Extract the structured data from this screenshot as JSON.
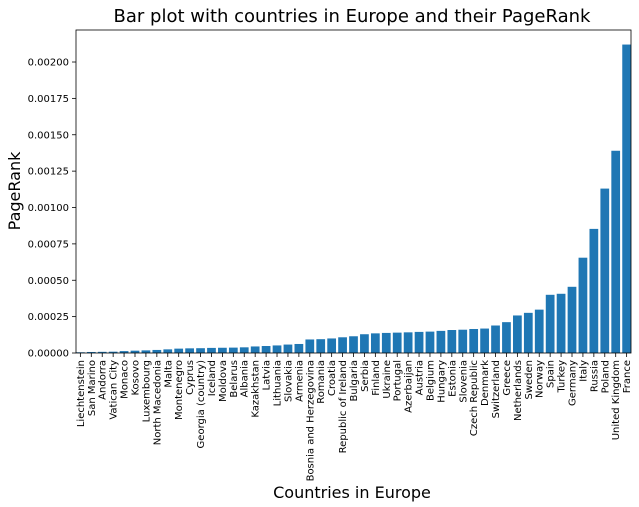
{
  "chart_data": {
    "type": "bar",
    "title": "Bar plot with countries in Europe and their PageRank",
    "xlabel": "Countries in Europe",
    "ylabel": "PageRank",
    "ylim": [
      0,
      0.00222
    ],
    "yticks": [
      "0.00000",
      "0.00025",
      "0.00050",
      "0.00075",
      "0.00100",
      "0.00125",
      "0.00150",
      "0.00175",
      "0.00200"
    ],
    "color": "#1f77b4",
    "grid": false,
    "categories": [
      "Liechtenstein",
      "San Marino",
      "Andorra",
      "Vatican City",
      "Monaco",
      "Kosovo",
      "Luxembourg",
      "North Macedonia",
      "Malta",
      "Montenegro",
      "Cyprus",
      "Georgia (country)",
      "Iceland",
      "Moldova",
      "Belarus",
      "Albania",
      "Kazakhstan",
      "Latvia",
      "Lithuania",
      "Slovakia",
      "Armenia",
      "Bosnia and Herzegovina",
      "Romania",
      "Croatia",
      "Republic of Ireland",
      "Bulgaria",
      "Serbia",
      "Finland",
      "Ukraine",
      "Portugal",
      "Azerbaijan",
      "Austria",
      "Belgium",
      "Hungary",
      "Estonia",
      "Slovenia",
      "Czech Republic",
      "Denmark",
      "Switzerland",
      "Greece",
      "Netherlands",
      "Sweden",
      "Norway",
      "Spain",
      "Turkey",
      "Germany",
      "Italy",
      "Russia",
      "Poland",
      "United Kingdom",
      "France"
    ],
    "values": [
      5e-06,
      7e-06,
      8e-06,
      9e-06,
      1.3e-05,
      1.6e-05,
      1.8e-05,
      2.1e-05,
      2.5e-05,
      3e-05,
      3.2e-05,
      3.3e-05,
      3.5e-05,
      3.6e-05,
      3.7e-05,
      3.9e-05,
      4.5e-05,
      4.8e-05,
      5.2e-05,
      5.8e-05,
      6.2e-05,
      9.3e-05,
      9.5e-05,
      0.0001,
      0.000108,
      0.000115,
      0.000129,
      0.000135,
      0.000138,
      0.00014,
      0.000142,
      0.000145,
      0.000147,
      0.000152,
      0.000158,
      0.00016,
      0.000165,
      0.000168,
      0.000189,
      0.000212,
      0.000258,
      0.000276,
      0.000298,
      0.0004,
      0.000407,
      0.000455,
      0.000655,
      0.000853,
      0.00113,
      0.00139,
      0.00212
    ]
  }
}
